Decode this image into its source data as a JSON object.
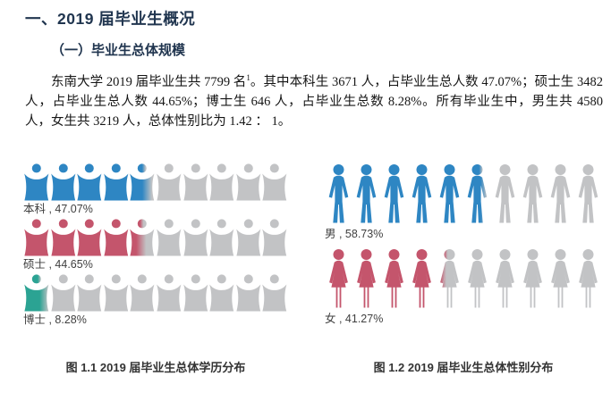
{
  "page": {
    "heading": "一、2019 届毕业生概况",
    "heading_color": "#20354f",
    "subheading": "（一）毕业生总体规模",
    "paragraph": {
      "part1": "东南大学 2019 届毕业生共 7799 名",
      "superscript": "1",
      "part2": "。其中本科生 3671 人，占毕业生总人数 47.07%；硕士生 3482 人，占毕业生总人数 44.65%；博士生 646 人，占毕业生总数 8.28%。所有毕业生中，男生共 4580 人，女生共 3219 人，总体性别比为 1.42 ： 1。"
    }
  },
  "chart_data": [
    {
      "type": "pictograph",
      "title": "图 1.1 2019 届毕业生总体学历分布",
      "icons_per_row": 10,
      "empty_color": "#c2c3c5",
      "legend_position": "below-rows",
      "rows": [
        {
          "label": "本科",
          "value": 47.07,
          "display": "本科 , 47.07%",
          "color": "#2e86c3",
          "icon": "person"
        },
        {
          "label": "硕士",
          "value": 44.65,
          "display": "硕士 , 44.65%",
          "color": "#c4556c",
          "icon": "person"
        },
        {
          "label": "博士",
          "value": 8.28,
          "display": "博士 , 8.28%",
          "color": "#2ba393",
          "icon": "person"
        }
      ]
    },
    {
      "type": "pictograph",
      "title": "图 1.2  2019 届毕业生总体性别分布",
      "icons_per_row": 10,
      "empty_color": "#c2c3c5",
      "legend_position": "below-rows",
      "rows": [
        {
          "label": "男",
          "value": 58.73,
          "display": "男 , 58.73%",
          "color": "#2e86c3",
          "icon": "male"
        },
        {
          "label": "女",
          "value": 41.27,
          "display": "女 , 41.27%",
          "color": "#c4556c",
          "icon": "female"
        }
      ]
    }
  ]
}
